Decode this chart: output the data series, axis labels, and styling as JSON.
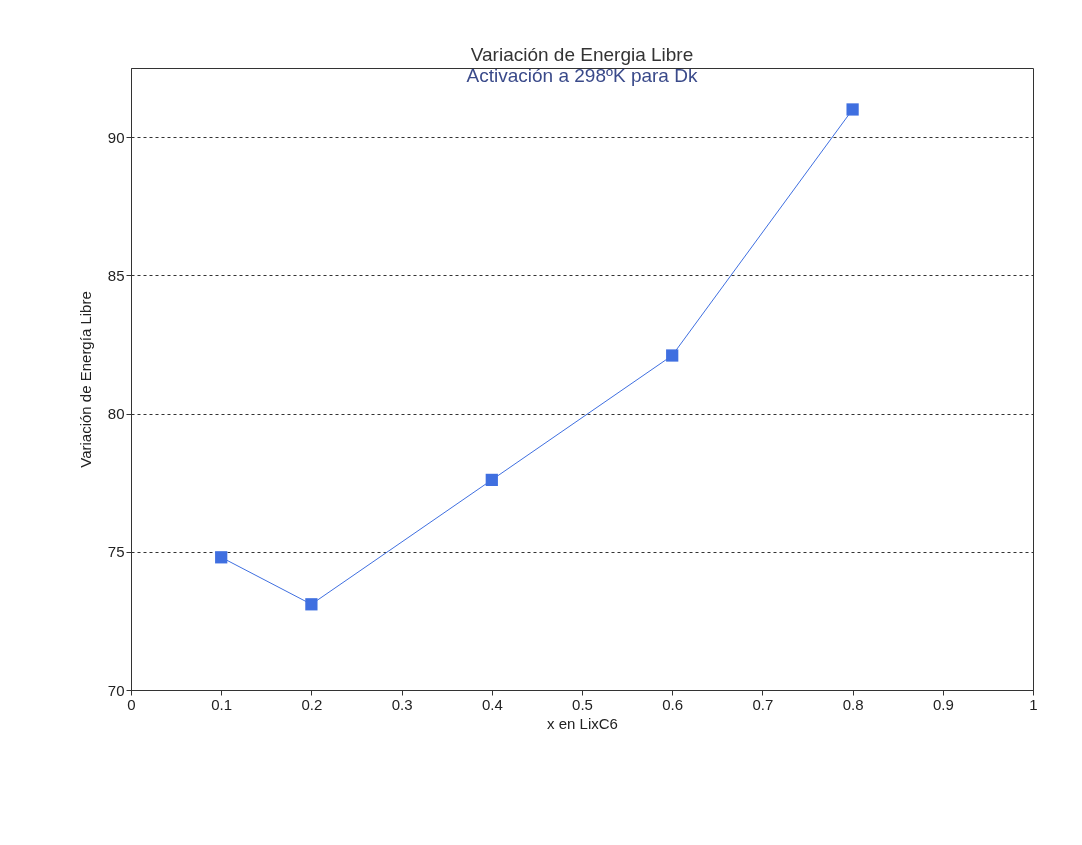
{
  "chart_data": {
    "type": "line",
    "title": "Variación de Energia Libre",
    "subtitle": "Activación a 298ºK para Dk",
    "xlabel": "x en LixC6",
    "ylabel": "Variación de Energía Libre",
    "x": [
      0.1,
      0.2,
      0.4,
      0.6,
      0.8
    ],
    "series": [
      {
        "color": "#3f6fe0",
        "values": [
          74.8,
          73.1,
          77.6,
          82.1,
          91.0
        ]
      }
    ],
    "xlim": [
      0,
      1
    ],
    "xticks": [
      0,
      0.1,
      0.2,
      0.3,
      0.4,
      0.5,
      0.6,
      0.7,
      0.8,
      0.9,
      1
    ],
    "ylim": [
      70,
      92.5
    ],
    "yticks": [
      70,
      75,
      80,
      85,
      90
    ],
    "grid": "y",
    "marker": "square",
    "line_style": "solid"
  }
}
